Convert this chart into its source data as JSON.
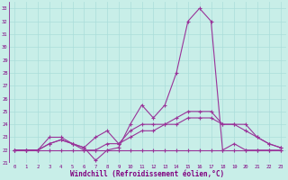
{
  "xlabel": "Windchill (Refroidissement éolien,°C)",
  "hours": [
    0,
    1,
    2,
    3,
    4,
    5,
    6,
    7,
    8,
    9,
    10,
    11,
    12,
    13,
    14,
    15,
    16,
    17,
    18,
    19,
    20,
    21,
    22,
    23
  ],
  "line1": [
    22,
    22,
    22,
    22.5,
    22.8,
    22.5,
    22.2,
    21.2,
    22,
    22.2,
    24,
    25.5,
    24.5,
    25.5,
    28,
    32,
    33,
    32,
    22,
    22.5,
    22,
    22,
    22,
    22
  ],
  "line2": [
    22,
    22,
    22,
    23,
    23,
    22.5,
    22.2,
    23,
    23.5,
    22.5,
    23.5,
    24,
    24,
    24,
    24.5,
    25,
    25,
    25,
    24,
    24,
    24,
    23,
    22.5,
    22.2
  ],
  "line3": [
    22,
    22,
    22,
    22.5,
    22.8,
    22.5,
    22,
    22,
    22.5,
    22.5,
    23,
    23.5,
    23.5,
    24,
    24,
    24.5,
    24.5,
    24.5,
    24,
    24,
    23.5,
    23,
    22.5,
    22.2
  ],
  "line4": [
    22,
    22,
    22,
    22,
    22,
    22,
    22,
    22,
    22,
    22,
    22,
    22,
    22,
    22,
    22,
    22,
    22,
    22,
    22,
    22,
    22,
    22,
    22,
    22
  ],
  "bg_color": "#c8eee8",
  "grid_color": "#aaddda",
  "line_color": "#993399",
  "text_color": "#800080",
  "ylim": [
    21,
    33.5
  ],
  "yticks": [
    21,
    22,
    23,
    24,
    25,
    26,
    27,
    28,
    29,
    30,
    31,
    32,
    33
  ],
  "figsize": [
    3.2,
    2.0
  ],
  "dpi": 100
}
